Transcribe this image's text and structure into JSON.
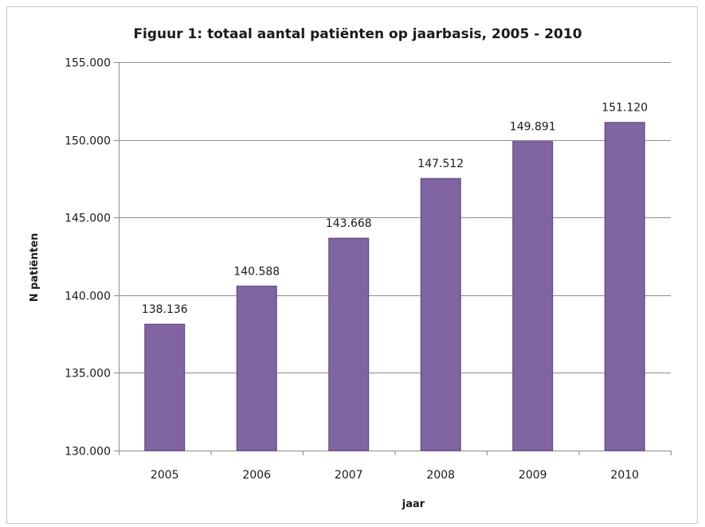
{
  "chart_data": {
    "type": "bar",
    "title": "Figuur 1: totaal aantal patiënten op jaarbasis, 2005 - 2010",
    "xlabel": "jaar",
    "ylabel": "N patiënten",
    "categories": [
      "2005",
      "2006",
      "2007",
      "2008",
      "2009",
      "2010"
    ],
    "values": [
      138136,
      140588,
      143668,
      147512,
      149891,
      151120
    ],
    "value_labels": [
      "138.136",
      "140.588",
      "143.668",
      "147.512",
      "149.891",
      "151.120"
    ],
    "ylim": [
      130000,
      155000
    ],
    "yticks": [
      130000,
      135000,
      140000,
      145000,
      150000,
      155000
    ],
    "ytick_labels": [
      "130.000",
      "135.000",
      "140.000",
      "145.000",
      "150.000",
      "155.000"
    ],
    "grid": true,
    "legend": "none",
    "colors": {
      "bar": "#8064a2",
      "bar_edge": "#5c4378",
      "grid": "#8c8c8c"
    }
  }
}
